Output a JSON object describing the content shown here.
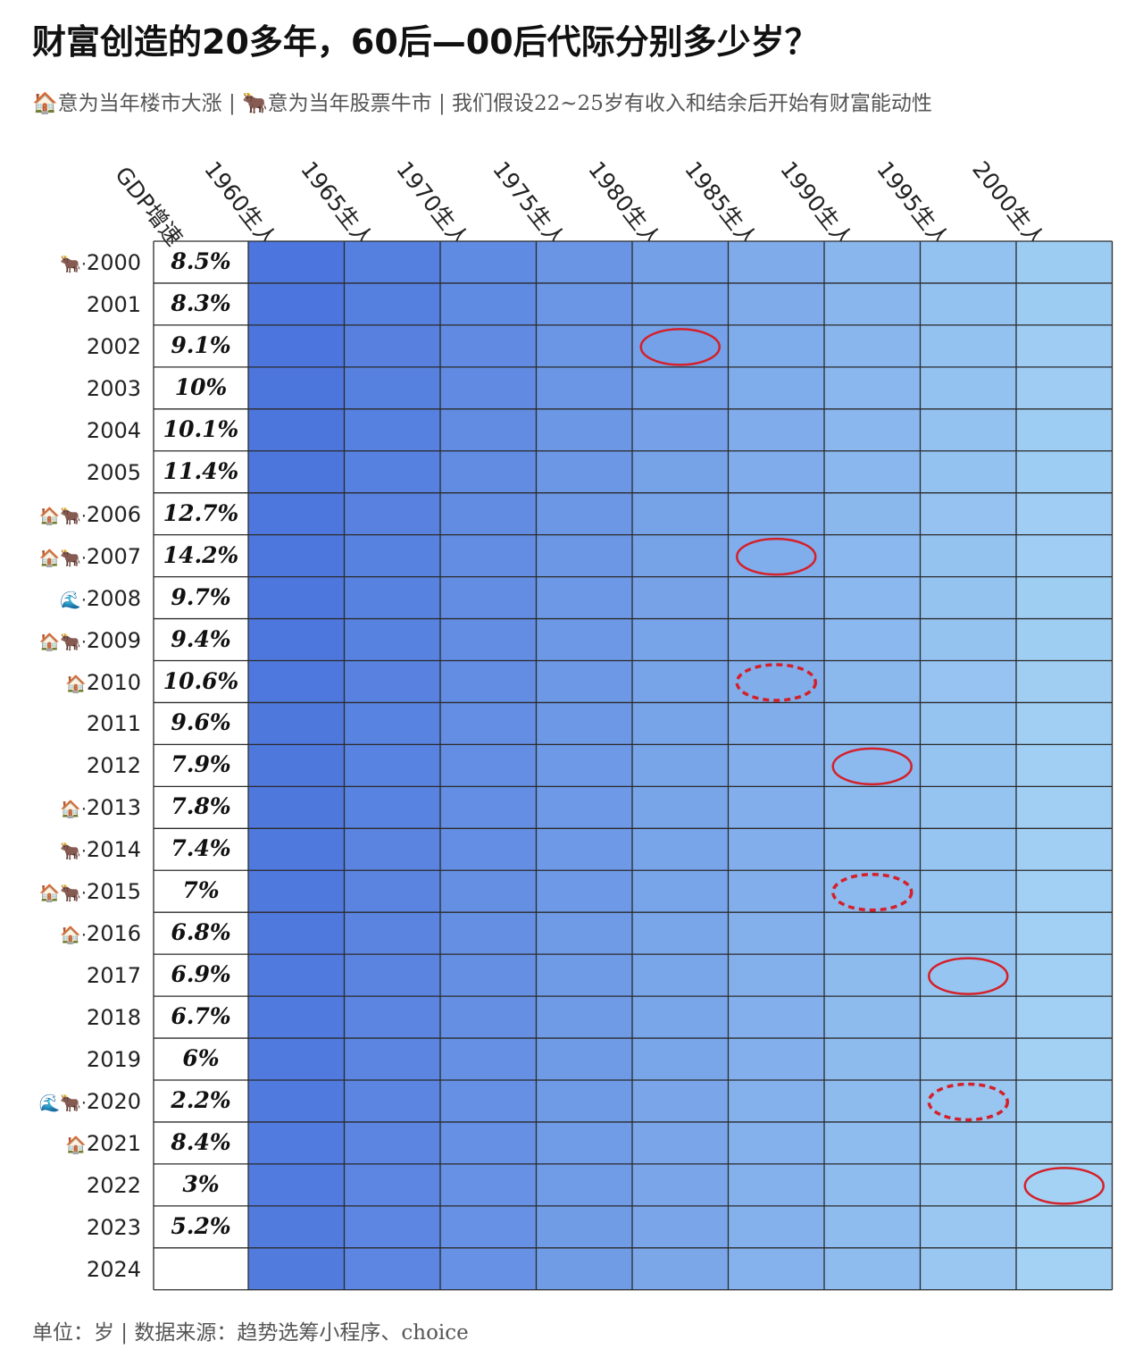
{
  "title": "财富创造的20多年，60后—00后代际分别多少岁？",
  "subtitle": "🏠意为当年楼市大涨 | 🐂意为当年股票牛市 | 我们假设22~25岁有收入和结余后开始有财富能动性",
  "footer": "单位：岁 | 数据来源：趋势选筹小程序、choice",
  "chart_data": {
    "type": "table",
    "unit": "岁",
    "gdp_header": "GDP增速",
    "columns": [
      "1960生人",
      "1965生人",
      "1970生人",
      "1975生人",
      "1980生人",
      "1985生人",
      "1990生人",
      "1995生人",
      "2000生人"
    ],
    "birth_years": [
      1960,
      1965,
      1970,
      1975,
      1980,
      1985,
      1990,
      1995,
      2000
    ],
    "rows": [
      {
        "year": "2000",
        "icons": "🐂·",
        "gdp": "8.5%"
      },
      {
        "year": "2001",
        "icons": "",
        "gdp": "8.3%"
      },
      {
        "year": "2002",
        "icons": "",
        "gdp": "9.1%"
      },
      {
        "year": "2003",
        "icons": "",
        "gdp": "10%"
      },
      {
        "year": "2004",
        "icons": "",
        "gdp": "10.1%"
      },
      {
        "year": "2005",
        "icons": "",
        "gdp": "11.4%"
      },
      {
        "year": "2006",
        "icons": "🏠🐂·",
        "gdp": "12.7%"
      },
      {
        "year": "2007",
        "icons": "🏠🐂·",
        "gdp": "14.2%"
      },
      {
        "year": "2008",
        "icons": "🌊·",
        "gdp": "9.7%"
      },
      {
        "year": "2009",
        "icons": "🏠🐂·",
        "gdp": "9.4%"
      },
      {
        "year": "2010",
        "icons": "🏠",
        "gdp": "10.6%"
      },
      {
        "year": "2011",
        "icons": "",
        "gdp": "9.6%"
      },
      {
        "year": "2012",
        "icons": "",
        "gdp": "7.9%"
      },
      {
        "year": "2013",
        "icons": "🏠·",
        "gdp": "7.8%"
      },
      {
        "year": "2014",
        "icons": "🐂·",
        "gdp": "7.4%"
      },
      {
        "year": "2015",
        "icons": "🏠🐂·",
        "gdp": "7%"
      },
      {
        "year": "2016",
        "icons": "🏠·",
        "gdp": "6.8%"
      },
      {
        "year": "2017",
        "icons": "",
        "gdp": "6.9%"
      },
      {
        "year": "2018",
        "icons": "",
        "gdp": "6.7%"
      },
      {
        "year": "2019",
        "icons": "",
        "gdp": "6%"
      },
      {
        "year": "2020",
        "icons": "🌊🐂·",
        "gdp": "2.2%"
      },
      {
        "year": "2021",
        "icons": "🏠",
        "gdp": "8.4%"
      },
      {
        "year": "2022",
        "icons": "",
        "gdp": "3%"
      },
      {
        "year": "2023",
        "icons": "",
        "gdp": "5.2%"
      },
      {
        "year": "2024",
        "icons": "",
        "gdp": ""
      }
    ],
    "highlights": [
      {
        "year": "2002",
        "column": "1980生人",
        "age": 22,
        "style": "solid"
      },
      {
        "year": "2007",
        "column": "1985生人",
        "age": 22,
        "style": "solid"
      },
      {
        "year": "2010",
        "column": "1985生人",
        "age": 25,
        "style": "dashed"
      },
      {
        "year": "2012",
        "column": "1990生人",
        "age": 22,
        "style": "solid"
      },
      {
        "year": "2015",
        "column": "1990生人",
        "age": 25,
        "style": "dashed"
      },
      {
        "year": "2017",
        "column": "1995生人",
        "age": 22,
        "style": "solid"
      },
      {
        "year": "2020",
        "column": "1995生人",
        "age": 25,
        "style": "dashed"
      },
      {
        "year": "2022",
        "column": "2000生人",
        "age": 22,
        "style": "solid"
      }
    ],
    "colors": {
      "cell_dark": "#4a73dc",
      "cell_light": "#a6d5f5",
      "highlight": "#d4202a",
      "grid": "#2b2b2b"
    }
  }
}
